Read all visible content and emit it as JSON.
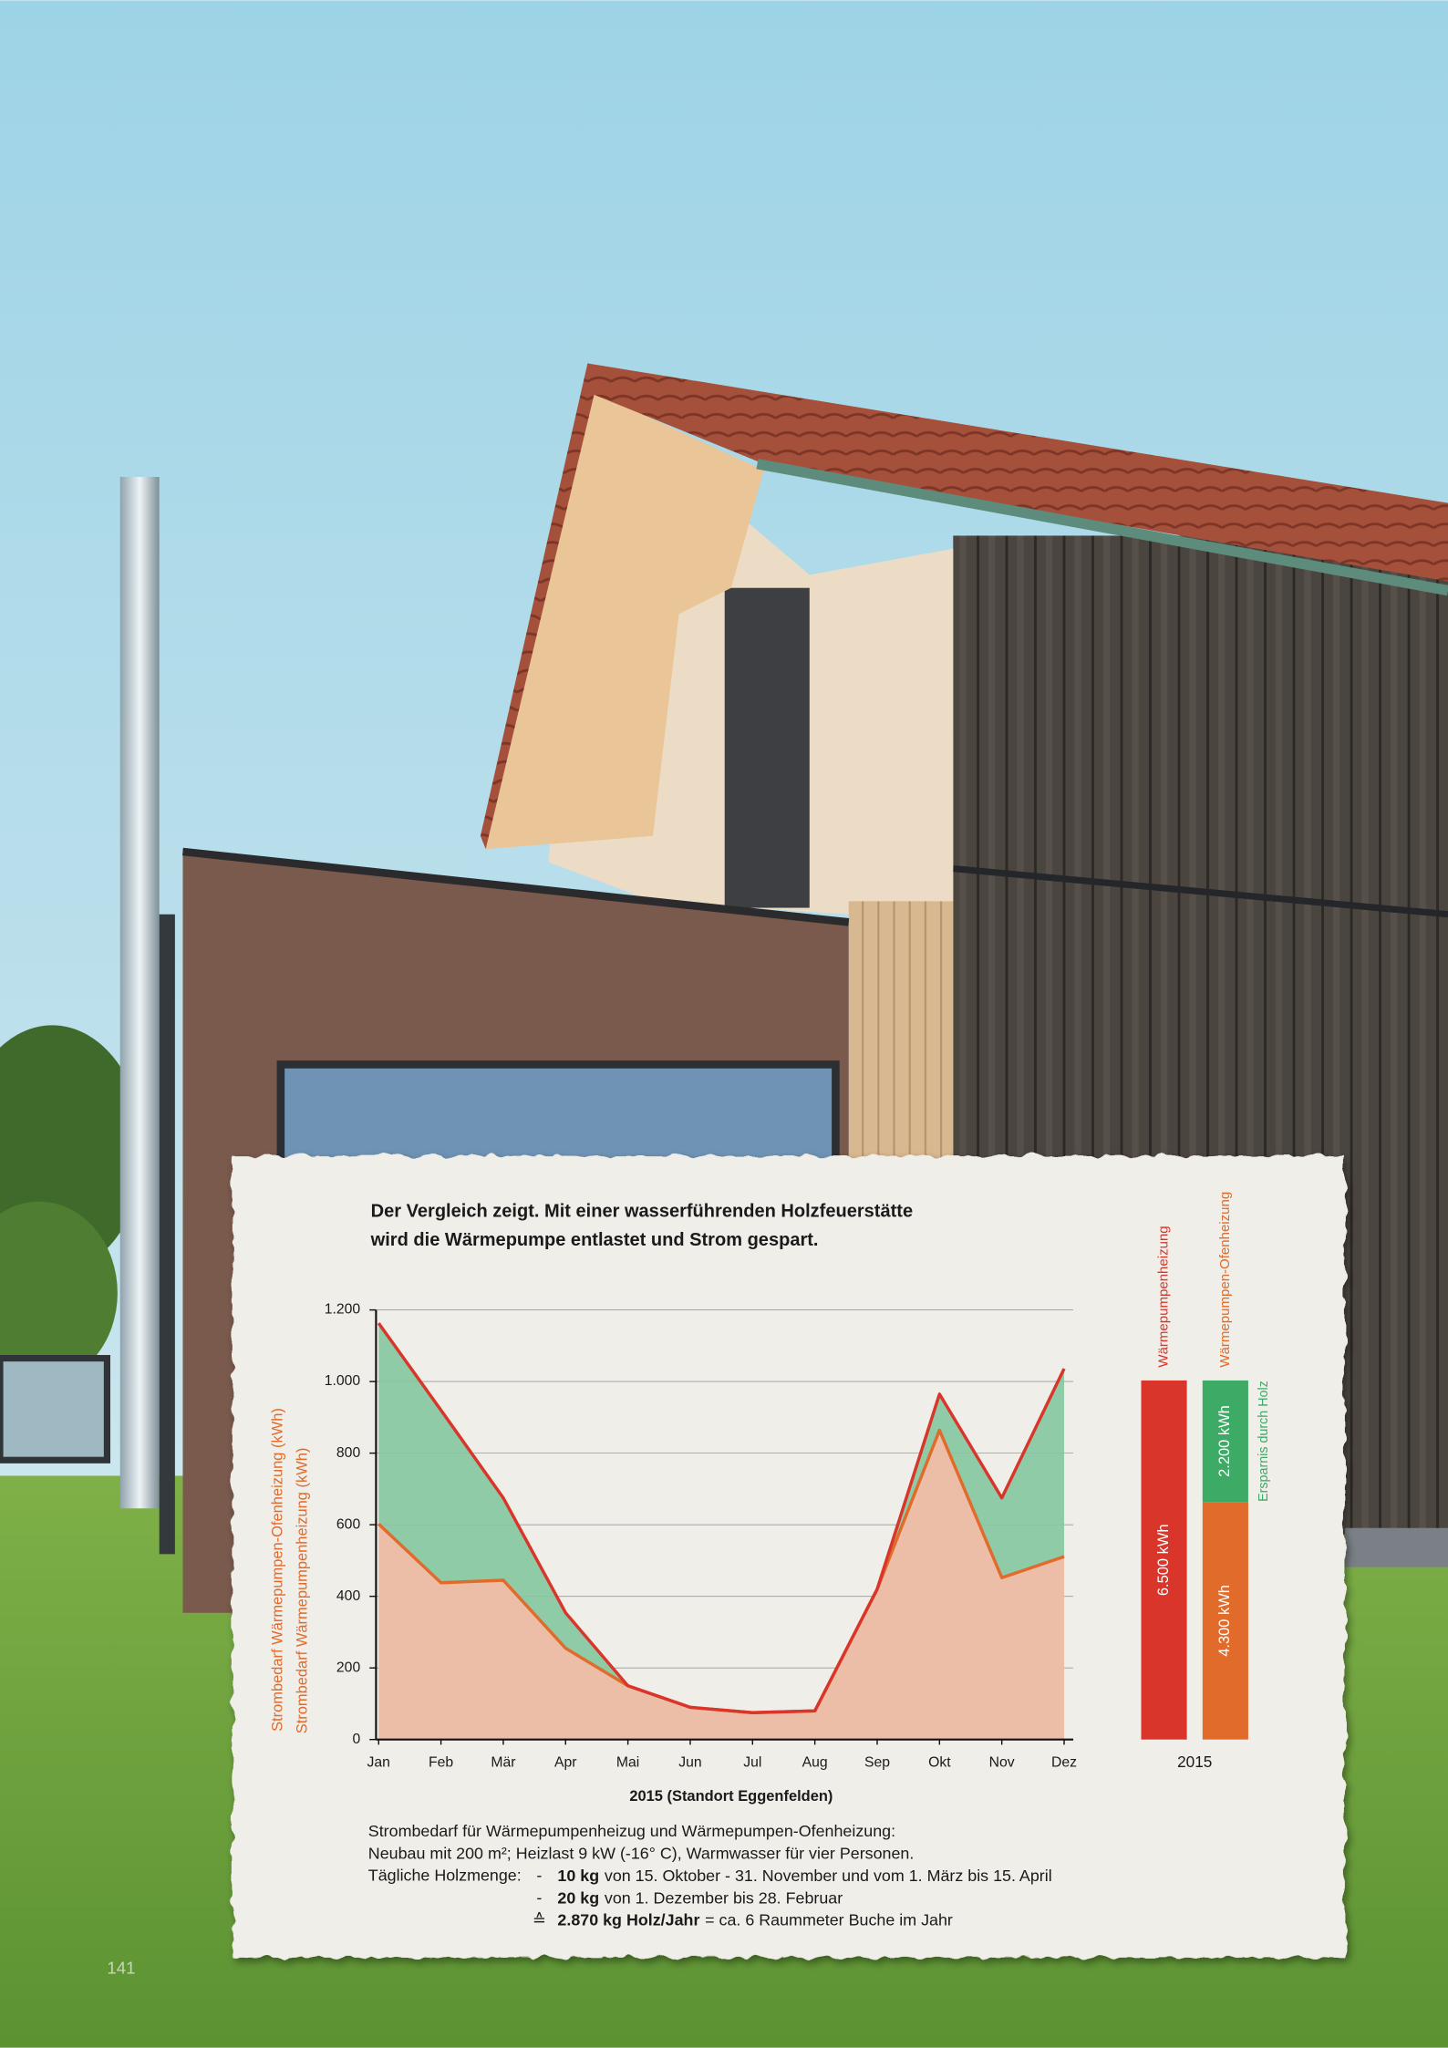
{
  "page_number": "141",
  "chart_data": [
    {
      "type": "area",
      "title": [
        "Der Vergleich zeigt. Mit einer wasserführenden Holzfeuerstätte",
        "wird die Wärmepumpe entlastet und Strom gespart."
      ],
      "x_label": "2015 (Standort Eggenfelden)",
      "y_label": [
        "Strombedarf Wärmepumpen-Ofenheizung (kWh)",
        "Strombedarf Wärmepumpenheizung (kWh)"
      ],
      "categories": [
        "Jan",
        "Feb",
        "Mär",
        "Apr",
        "Mai",
        "Jun",
        "Jul",
        "Aug",
        "Sep",
        "Okt",
        "Nov",
        "Dez"
      ],
      "series": [
        {
          "name": "Wärmepumpenheizung",
          "color": "#d9352a",
          "fill_color": "#86c8a0",
          "values": [
            1163,
            920,
            675,
            354,
            150,
            90,
            75,
            80,
            420,
            965,
            675,
            1036
          ]
        },
        {
          "name": "Wärmepumpen-Ofenheizung",
          "color": "#e06b2b",
          "fill_color": "#ecbea7",
          "values": [
            602,
            438,
            445,
            255,
            150,
            90,
            75,
            80,
            420,
            864,
            452,
            511
          ]
        }
      ],
      "ylim": [
        0,
        1200
      ],
      "yticks": [
        0,
        200,
        400,
        600,
        800,
        {
          "value": 1000,
          "label": "1.000"
        },
        {
          "value": 1200,
          "label": "1.200"
        }
      ],
      "grid": true
    },
    {
      "type": "stacked_bar",
      "categories": [
        "2015"
      ],
      "series": [
        {
          "name": "Wärmepumpenheizung",
          "color": "#d9352a",
          "values": [
            6500
          ],
          "value_labels": [
            "6.500 kWh"
          ]
        },
        {
          "name": "Wärmepumpen-Ofenheizung",
          "color": "#e06b2b",
          "values": [
            4300
          ],
          "value_labels": [
            "4.300 kWh"
          ]
        },
        {
          "name": "Ersparnis durch Holz",
          "color": "#3daa66",
          "values": [
            2200
          ],
          "value_labels": [
            "2.200 kWh"
          ]
        }
      ]
    }
  ],
  "notes": {
    "lines": [
      "Strombedarf für Wärmepumpenheizug und Wärmepumpen-Ofenheizung:",
      "Neubau mit 200 m²; Heizlast 9 kW (-16° C), Warmwasser für vier Personen."
    ],
    "wood_label": "Tägliche Holzmenge:",
    "wood": [
      {
        "marker": "-",
        "amount": "10 kg",
        "text": "von 15. Oktober - 31. November und vom 1. März bis 15. April"
      },
      {
        "marker": "-",
        "amount": "20 kg",
        "text": "von 1. Dezember bis 28. Februar"
      },
      {
        "marker": "≙",
        "amount": "2.870 kg Holz/Jahr",
        "text": "= ca. 6 Raummeter Buche im Jahr"
      }
    ]
  }
}
